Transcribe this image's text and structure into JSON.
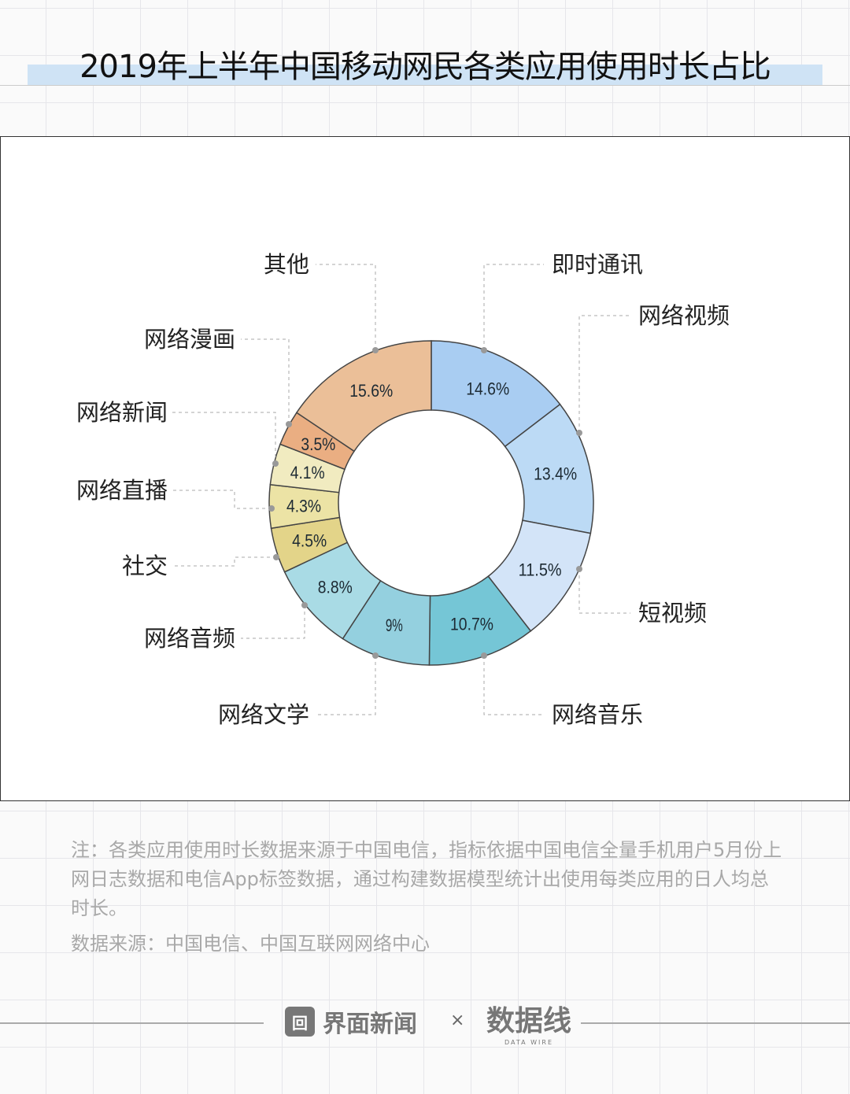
{
  "title": "2019年上半年中国移动网民各类应用使用时长占比",
  "chart_data": {
    "type": "pie",
    "variant": "donut",
    "start": "top",
    "direction": "clockwise",
    "categories": [
      "即时通讯",
      "网络视频",
      "短视频",
      "网络音乐",
      "网络文学",
      "网络音频",
      "社交",
      "网络直播",
      "网络新闻",
      "网络漫画",
      "其他"
    ],
    "values": [
      14.6,
      13.4,
      11.5,
      10.7,
      9,
      8.8,
      4.5,
      4.3,
      4.1,
      3.5,
      15.6
    ],
    "data_labels": [
      "14.6%",
      "13.4%",
      "11.5%",
      "10.7%",
      "9%",
      "8.8%",
      "4.5%",
      "4.3%",
      "4.1%",
      "3.5%",
      "15.6%"
    ],
    "colors": [
      "#a9cdf2",
      "#bcdaf5",
      "#d3e4f8",
      "#75c6d6",
      "#94d0df",
      "#a9dbe5",
      "#e3d489",
      "#ece3a5",
      "#f1ebc0",
      "#eaae82",
      "#ebbf98"
    ]
  },
  "note": "注：各类应用使用时长数据来源于中国电信，指标依据中国电信全量手机用户5月份上网日志数据和电信App标签数据，通过构建数据模型统计出使用每类应用的日人均总时长。",
  "source": "数据来源：中国电信、中国互联网网络中心",
  "footer": {
    "brand1": "界面新闻",
    "times": "×",
    "brand2": "数据线",
    "brand2_sub": "DATA WIRE"
  },
  "watermark": "数据线"
}
